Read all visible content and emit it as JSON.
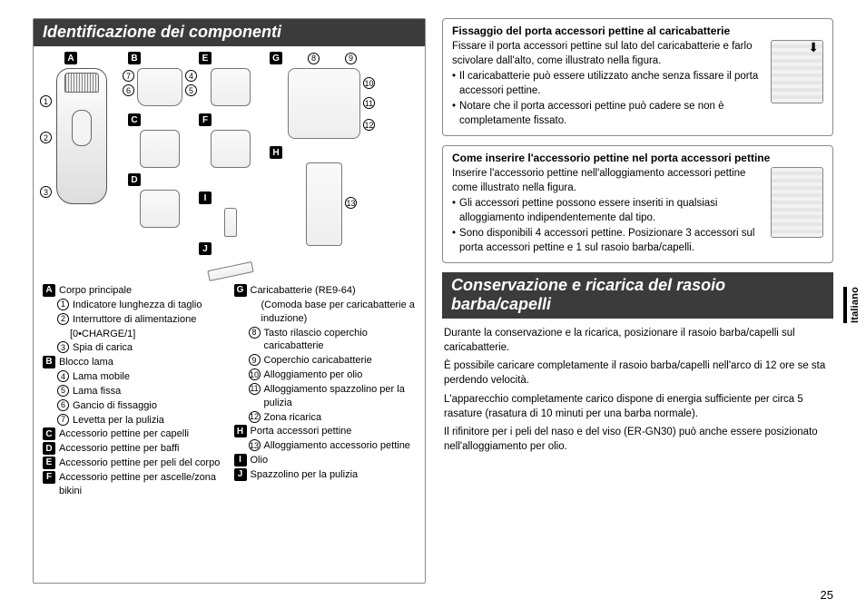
{
  "pageNumber": "25",
  "languageTab": "Italiano",
  "left": {
    "heading": "Identificazione dei componenti",
    "letters": {
      "A": "A",
      "B": "B",
      "C": "C",
      "D": "D",
      "E": "E",
      "F": "F",
      "G": "G",
      "H": "H",
      "I": "I",
      "J": "J"
    },
    "nums": {
      "1": "1",
      "2": "2",
      "3": "3",
      "4": "4",
      "5": "5",
      "6": "6",
      "7": "7",
      "8": "8",
      "9": "9",
      "10": "10",
      "11": "11",
      "12": "12",
      "13": "13"
    },
    "legendLeft": [
      {
        "type": "letter",
        "m": "A",
        "t": "Corpo principale"
      },
      {
        "type": "num",
        "m": "1",
        "t": "Indicatore lunghezza di taglio"
      },
      {
        "type": "num",
        "m": "2",
        "t": "Interruttore di alimentazione"
      },
      {
        "type": "plain",
        "t": "[0•CHARGE/1]"
      },
      {
        "type": "num",
        "m": "3",
        "t": "Spia di carica"
      },
      {
        "type": "letter",
        "m": "B",
        "t": "Blocco lama"
      },
      {
        "type": "num",
        "m": "4",
        "t": "Lama mobile"
      },
      {
        "type": "num",
        "m": "5",
        "t": "Lama fissa"
      },
      {
        "type": "num",
        "m": "6",
        "t": "Gancio di fissaggio"
      },
      {
        "type": "num",
        "m": "7",
        "t": "Levetta per la pulizia"
      },
      {
        "type": "letter",
        "m": "C",
        "t": "Accessorio pettine per capelli"
      },
      {
        "type": "letter",
        "m": "D",
        "t": "Accessorio pettine per baffi"
      },
      {
        "type": "letter",
        "m": "E",
        "t": "Accessorio pettine per peli del corpo"
      },
      {
        "type": "letter",
        "m": "F",
        "t": "Accessorio pettine per ascelle/zona bikini"
      }
    ],
    "legendRight": [
      {
        "type": "letter",
        "m": "G",
        "t": "Caricabatterie (RE9-64)"
      },
      {
        "type": "plain",
        "t": "(Comoda base per caricabatterie a induzione)"
      },
      {
        "type": "num",
        "m": "8",
        "t": "Tasto rilascio coperchio caricabatterie"
      },
      {
        "type": "num",
        "m": "9",
        "t": "Coperchio caricabatterie"
      },
      {
        "type": "num",
        "m": "10",
        "t": "Alloggiamento per olio"
      },
      {
        "type": "num",
        "m": "11",
        "t": "Alloggiamento spazzolino per la pulizia"
      },
      {
        "type": "num",
        "m": "12",
        "t": "Zona ricarica"
      },
      {
        "type": "letter",
        "m": "H",
        "t": "Porta accessori pettine"
      },
      {
        "type": "num",
        "m": "13",
        "t": "Alloggiamento accessorio pettine"
      },
      {
        "type": "letter",
        "m": "I",
        "t": "Olio"
      },
      {
        "type": "letter",
        "m": "J",
        "t": "Spazzolino per la pulizia"
      }
    ]
  },
  "right": {
    "box1": {
      "title": "Fissaggio del porta accessori pettine al caricabatterie",
      "intro": "Fissare il porta accessori pettine sul lato del caricabatterie e farlo scivolare dall'alto, come illustrato nella figura.",
      "bullets": [
        "Il caricabatterie può essere utilizzato anche senza fissare il porta accessori pettine.",
        "Notare che il porta accessori pettine può cadere se non è completamente fissato."
      ]
    },
    "box2": {
      "title": "Come inserire l'accessorio pettine nel porta accessori pettine",
      "intro": "Inserire l'accessorio pettine nell'alloggiamento accessori pettine come illustrato nella figura.",
      "bullets": [
        "Gli accessori pettine possono essere inseriti in qualsiasi alloggiamento indipendentemente dal tipo.",
        "Sono disponibili 4 accessori pettine. Posizionare 3 accessori sul porta accessori pettine e 1 sul rasoio barba/capelli."
      ]
    },
    "section2": {
      "heading": "Conservazione e ricarica del rasoio barba/capelli",
      "paras": [
        "Durante la conservazione e la ricarica, posizionare il rasoio barba/capelli sul caricabatterie.",
        "È possibile caricare completamente il rasoio barba/capelli nell'arco di 12 ore se sta perdendo velocità.",
        "L'apparecchio completamente carico dispone di energia sufficiente per circa 5 rasature (rasatura di 10 minuti per una barba normale).",
        "Il rifinitore per i peli del naso e del viso (ER-GN30) può anche essere posizionato nell'alloggiamento per olio."
      ]
    }
  }
}
